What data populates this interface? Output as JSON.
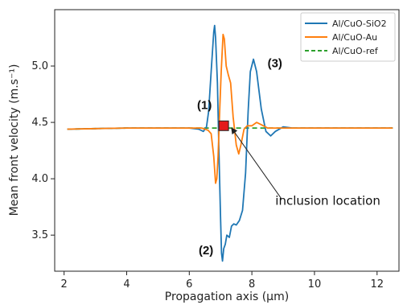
{
  "chart_data": {
    "type": "line",
    "xlabel": "Propagation axis (μm)",
    "ylabel": "Mean front velocity (m.s⁻¹)",
    "xlim": [
      1.7,
      12.7
    ],
    "ylim": [
      3.18,
      5.5
    ],
    "x_ticks": [
      2,
      4,
      6,
      8,
      10,
      12
    ],
    "y_ticks": [
      3.5,
      4.0,
      4.5,
      5.0
    ],
    "x_tick_labels": [
      "2",
      "4",
      "6",
      "8",
      "10",
      "12"
    ],
    "y_tick_labels": [
      "3.5",
      "4.0",
      "4.5",
      "5.0"
    ],
    "grid": false,
    "legend_position": "top-right",
    "series": [
      {
        "name": "Al/CuO-SiO2",
        "color": "#1f77b4",
        "style": "solid",
        "points": [
          [
            2.1,
            4.44
          ],
          [
            3.0,
            4.445
          ],
          [
            4.0,
            4.45
          ],
          [
            5.0,
            4.45
          ],
          [
            6.0,
            4.45
          ],
          [
            6.3,
            4.44
          ],
          [
            6.45,
            4.42
          ],
          [
            6.55,
            4.46
          ],
          [
            6.62,
            4.6
          ],
          [
            6.7,
            4.95
          ],
          [
            6.78,
            5.3
          ],
          [
            6.81,
            5.36
          ],
          [
            6.84,
            5.25
          ],
          [
            6.9,
            4.85
          ],
          [
            6.95,
            4.2
          ],
          [
            7.0,
            3.65
          ],
          [
            7.03,
            3.34
          ],
          [
            7.06,
            3.27
          ],
          [
            7.1,
            3.38
          ],
          [
            7.15,
            3.42
          ],
          [
            7.2,
            3.5
          ],
          [
            7.28,
            3.48
          ],
          [
            7.35,
            3.58
          ],
          [
            7.42,
            3.6
          ],
          [
            7.5,
            3.59
          ],
          [
            7.6,
            3.63
          ],
          [
            7.7,
            3.72
          ],
          [
            7.8,
            4.05
          ],
          [
            7.88,
            4.6
          ],
          [
            7.95,
            4.95
          ],
          [
            8.05,
            5.06
          ],
          [
            8.15,
            4.95
          ],
          [
            8.3,
            4.62
          ],
          [
            8.45,
            4.42
          ],
          [
            8.6,
            4.38
          ],
          [
            8.75,
            4.42
          ],
          [
            9.0,
            4.46
          ],
          [
            9.3,
            4.45
          ],
          [
            10,
            4.45
          ],
          [
            11,
            4.45
          ],
          [
            12.5,
            4.45
          ]
        ]
      },
      {
        "name": "Al/CuO-Au",
        "color": "#ff7f0e",
        "style": "solid",
        "points": [
          [
            2.1,
            4.44
          ],
          [
            3.0,
            4.445
          ],
          [
            4.0,
            4.45
          ],
          [
            5.0,
            4.45
          ],
          [
            6.0,
            4.45
          ],
          [
            6.4,
            4.45
          ],
          [
            6.6,
            4.43
          ],
          [
            6.7,
            4.4
          ],
          [
            6.78,
            4.2
          ],
          [
            6.84,
            3.96
          ],
          [
            6.88,
            4.0
          ],
          [
            6.92,
            4.2
          ],
          [
            6.97,
            4.6
          ],
          [
            7.02,
            4.95
          ],
          [
            7.08,
            5.28
          ],
          [
            7.12,
            5.24
          ],
          [
            7.18,
            5.0
          ],
          [
            7.25,
            4.92
          ],
          [
            7.32,
            4.85
          ],
          [
            7.4,
            4.55
          ],
          [
            7.5,
            4.3
          ],
          [
            7.58,
            4.22
          ],
          [
            7.65,
            4.3
          ],
          [
            7.75,
            4.44
          ],
          [
            7.85,
            4.47
          ],
          [
            8.0,
            4.47
          ],
          [
            8.15,
            4.5
          ],
          [
            8.3,
            4.48
          ],
          [
            8.5,
            4.45
          ],
          [
            9.0,
            4.45
          ],
          [
            10,
            4.45
          ],
          [
            11,
            4.45
          ],
          [
            12.5,
            4.45
          ]
        ]
      },
      {
        "name": "Al/CuO-ref",
        "color": "#2ca02c",
        "style": "dashed",
        "points": [
          [
            2.1,
            4.44
          ],
          [
            4.0,
            4.45
          ],
          [
            6.0,
            4.45
          ],
          [
            8.0,
            4.45
          ],
          [
            10,
            4.45
          ],
          [
            12.5,
            4.45
          ]
        ]
      }
    ],
    "annotations": [
      {
        "text": "(1)",
        "x": 6.25,
        "y": 4.62
      },
      {
        "text": "(2)",
        "x": 6.3,
        "y": 3.33
      },
      {
        "text": "(3)",
        "x": 8.5,
        "y": 4.99
      },
      {
        "text": "inclusion location",
        "x": 8.75,
        "y": 3.77
      }
    ],
    "inclusion_marker": {
      "x": 7.1,
      "y": 4.47,
      "color": "#e41a1c"
    },
    "arrow": {
      "from": [
        8.95,
        3.82
      ],
      "to": [
        7.35,
        4.45
      ]
    }
  }
}
